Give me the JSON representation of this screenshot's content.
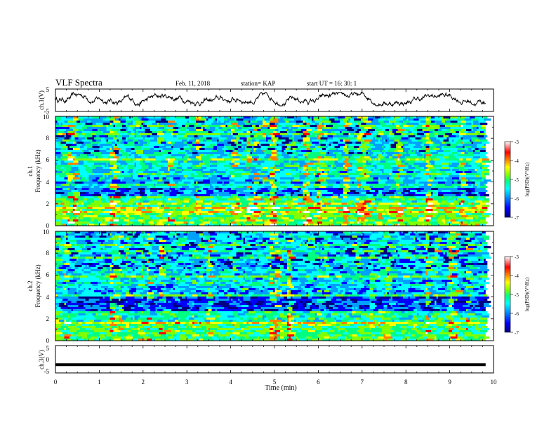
{
  "header": {
    "title": "VLF Spectra",
    "date": "Feb. 11, 2018",
    "station": "station= KAP",
    "start": "start  UT =   16: 30: 1"
  },
  "colors": {
    "spectrogram_palette": [
      "#000080",
      "#0000ff",
      "#00a0ff",
      "#00ffff",
      "#00ff80",
      "#80ff00",
      "#ffff00",
      "#ff8000",
      "#ff0000",
      "#ffffff"
    ],
    "waveform": "#000000"
  },
  "chart_data": [
    {
      "type": "line",
      "panel": "ch1-waveform",
      "ylabel": "ch.1(V)",
      "ylim": [
        -5,
        5
      ],
      "yticks": [
        "5",
        "-5"
      ],
      "xlim": [
        0,
        10
      ],
      "x_extent": [
        0,
        9.82
      ],
      "amplitude_range": [
        -2.5,
        3.5
      ],
      "series": [
        {
          "values": []
        }
      ]
    },
    {
      "type": "heatmap",
      "panel": "ch1-spectrogram",
      "ylabel": "ch.1\nFrequency (kHz)",
      "ylim": [
        0,
        10
      ],
      "yticks": [
        "0",
        "2",
        "4",
        "6",
        "8",
        "10"
      ],
      "xlim": [
        0,
        10
      ],
      "x_extent": [
        0,
        9.82
      ],
      "colorbar": {
        "label": "log(PSD)(V²/Hz)",
        "range": [
          -7,
          -3
        ],
        "ticks": [
          "-3",
          "-4",
          "-5",
          "-6",
          "-7"
        ]
      }
    },
    {
      "type": "heatmap",
      "panel": "ch2-spectrogram",
      "ylabel": "ch.2\nFrequency (kHz)",
      "ylim": [
        0,
        10
      ],
      "yticks": [
        "0",
        "2",
        "4",
        "6",
        "8",
        "10"
      ],
      "xlim": [
        0,
        10
      ],
      "x_extent": [
        0,
        9.82
      ],
      "colorbar": {
        "label": "log(PSD)(V²/Hz)",
        "range": [
          -7,
          -3
        ],
        "ticks": [
          "-3",
          "-4",
          "-5",
          "-6",
          "-7"
        ]
      }
    },
    {
      "type": "line",
      "panel": "ch3-waveform",
      "ylabel": "ch.3(V)",
      "ylim": [
        -5,
        5
      ],
      "yticks": [
        "5",
        "0",
        "-5"
      ],
      "xlim": [
        0,
        10
      ],
      "x_extent": [
        0,
        9.82
      ],
      "series": [
        {
          "values": [
            -2,
            -2
          ]
        }
      ]
    }
  ],
  "xaxis": {
    "label": "Time (min)",
    "ticks": [
      "0",
      "1",
      "2",
      "3",
      "4",
      "5",
      "6",
      "7",
      "8",
      "9",
      "10"
    ]
  }
}
